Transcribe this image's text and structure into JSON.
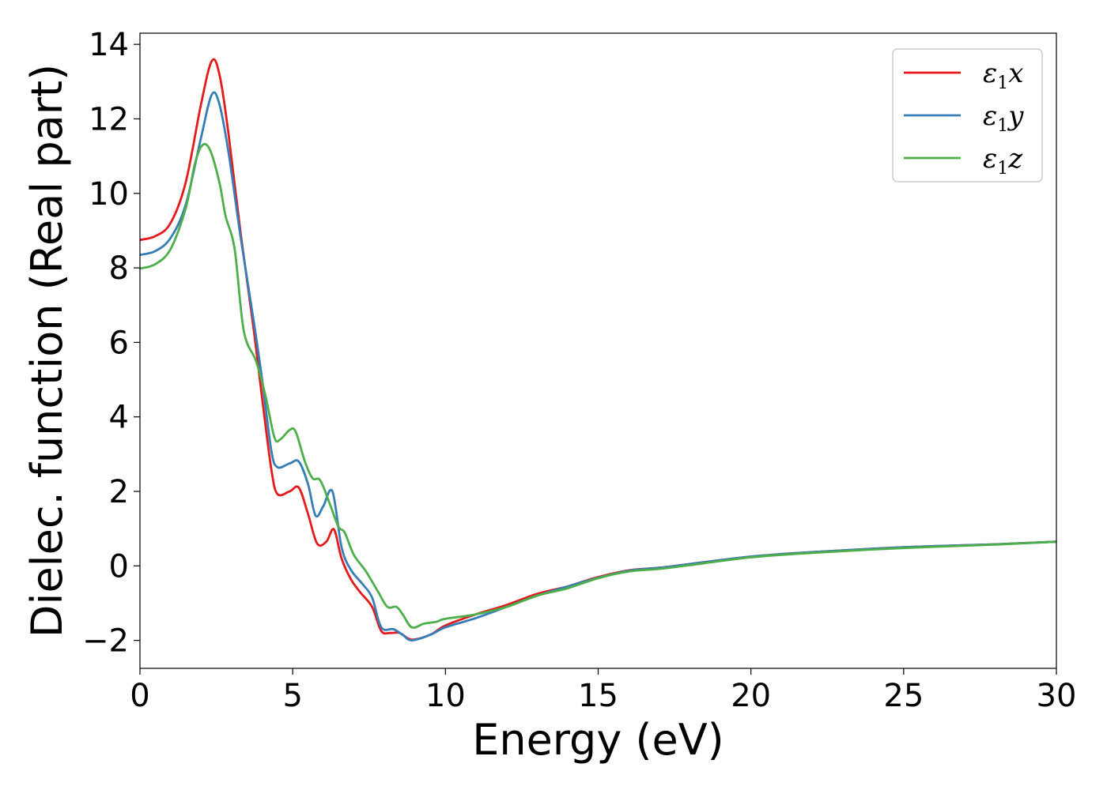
{
  "chart_data": {
    "type": "line",
    "title": "",
    "xlabel": "Energy (eV)",
    "ylabel": "Dielec. function (Real part)",
    "xlim": [
      0,
      30
    ],
    "ylim": [
      -2.75,
      14.3
    ],
    "xticks": [
      0,
      5,
      10,
      15,
      20,
      25,
      30
    ],
    "yticks": [
      -2,
      0,
      2,
      4,
      6,
      8,
      10,
      12,
      14
    ],
    "xtick_labels": [
      "0",
      "5",
      "10",
      "15",
      "20",
      "25",
      "30"
    ],
    "ytick_labels": [
      "−2",
      "0",
      "2",
      "4",
      "6",
      "8",
      "10",
      "12",
      "14"
    ],
    "grid": false,
    "legend_position": "top-right",
    "series": [
      {
        "name": "ε₁x",
        "symbol": "ε",
        "subscript": "1",
        "suffix": "x",
        "color": "#e41a1c",
        "points": [
          [
            0,
            8.75
          ],
          [
            0.5,
            8.85
          ],
          [
            1,
            9.2
          ],
          [
            1.5,
            10.3
          ],
          [
            2,
            12.4
          ],
          [
            2.35,
            13.55
          ],
          [
            2.6,
            13.2
          ],
          [
            2.9,
            11.6
          ],
          [
            3.3,
            8.9
          ],
          [
            3.7,
            6.5
          ],
          [
            4,
            4.5
          ],
          [
            4.3,
            2.6
          ],
          [
            4.5,
            1.93
          ],
          [
            4.9,
            2.0
          ],
          [
            5.2,
            2.1
          ],
          [
            5.5,
            1.4
          ],
          [
            5.8,
            0.6
          ],
          [
            6.1,
            0.65
          ],
          [
            6.35,
            0.98
          ],
          [
            6.6,
            0.2
          ],
          [
            6.9,
            -0.35
          ],
          [
            7.2,
            -0.7
          ],
          [
            7.6,
            -1.1
          ],
          [
            7.9,
            -1.75
          ],
          [
            8.2,
            -1.8
          ],
          [
            8.5,
            -1.8
          ],
          [
            8.9,
            -1.98
          ],
          [
            9.5,
            -1.85
          ],
          [
            10,
            -1.6
          ],
          [
            11,
            -1.3
          ],
          [
            12,
            -1.05
          ],
          [
            13,
            -0.75
          ],
          [
            14,
            -0.55
          ],
          [
            15,
            -0.3
          ],
          [
            16,
            -0.12
          ],
          [
            17,
            -0.05
          ],
          [
            18,
            0.05
          ],
          [
            20,
            0.25
          ],
          [
            22,
            0.37
          ],
          [
            25,
            0.5
          ],
          [
            28,
            0.58
          ],
          [
            30,
            0.65
          ]
        ]
      },
      {
        "name": "ε₁y",
        "symbol": "ε",
        "subscript": "1",
        "suffix": "y",
        "color": "#377eb8",
        "points": [
          [
            0,
            8.35
          ],
          [
            0.5,
            8.45
          ],
          [
            1,
            8.8
          ],
          [
            1.5,
            9.7
          ],
          [
            2,
            11.5
          ],
          [
            2.35,
            12.65
          ],
          [
            2.6,
            12.4
          ],
          [
            2.9,
            11.1
          ],
          [
            3.3,
            8.8
          ],
          [
            3.7,
            6.7
          ],
          [
            4,
            5.0
          ],
          [
            4.3,
            3.1
          ],
          [
            4.5,
            2.65
          ],
          [
            4.9,
            2.75
          ],
          [
            5.2,
            2.8
          ],
          [
            5.5,
            2.2
          ],
          [
            5.75,
            1.35
          ],
          [
            6,
            1.6
          ],
          [
            6.3,
            2.0
          ],
          [
            6.6,
            0.5
          ],
          [
            6.9,
            -0.1
          ],
          [
            7.3,
            -0.5
          ],
          [
            7.6,
            -0.85
          ],
          [
            7.9,
            -1.65
          ],
          [
            8.3,
            -1.7
          ],
          [
            8.6,
            -1.85
          ],
          [
            8.9,
            -2.0
          ],
          [
            9.5,
            -1.85
          ],
          [
            10,
            -1.65
          ],
          [
            11,
            -1.4
          ],
          [
            12,
            -1.1
          ],
          [
            13,
            -0.8
          ],
          [
            14,
            -0.55
          ],
          [
            15,
            -0.32
          ],
          [
            16,
            -0.13
          ],
          [
            17,
            -0.05
          ],
          [
            18,
            0.05
          ],
          [
            20,
            0.25
          ],
          [
            22,
            0.37
          ],
          [
            25,
            0.5
          ],
          [
            28,
            0.58
          ],
          [
            30,
            0.65
          ]
        ]
      },
      {
        "name": "ε₁z",
        "symbol": "ε",
        "subscript": "1",
        "suffix": "z",
        "color": "#4daf4a",
        "points": [
          [
            0,
            7.98
          ],
          [
            0.5,
            8.1
          ],
          [
            1,
            8.5
          ],
          [
            1.5,
            9.6
          ],
          [
            1.8,
            10.8
          ],
          [
            2.05,
            11.3
          ],
          [
            2.3,
            11.15
          ],
          [
            2.6,
            10.3
          ],
          [
            2.8,
            9.4
          ],
          [
            3.1,
            8.5
          ],
          [
            3.4,
            6.3
          ],
          [
            3.8,
            5.5
          ],
          [
            4.1,
            4.6
          ],
          [
            4.4,
            3.45
          ],
          [
            4.6,
            3.4
          ],
          [
            4.9,
            3.65
          ],
          [
            5.1,
            3.6
          ],
          [
            5.4,
            2.8
          ],
          [
            5.65,
            2.35
          ],
          [
            5.9,
            2.3
          ],
          [
            6.2,
            1.7
          ],
          [
            6.5,
            1.05
          ],
          [
            6.7,
            0.9
          ],
          [
            7,
            0.3
          ],
          [
            7.4,
            -0.15
          ],
          [
            7.8,
            -0.7
          ],
          [
            8.1,
            -1.1
          ],
          [
            8.4,
            -1.1
          ],
          [
            8.6,
            -1.3
          ],
          [
            8.9,
            -1.65
          ],
          [
            9.3,
            -1.55
          ],
          [
            9.7,
            -1.5
          ],
          [
            10,
            -1.42
          ],
          [
            11,
            -1.3
          ],
          [
            12,
            -1.1
          ],
          [
            13,
            -0.8
          ],
          [
            14,
            -0.6
          ],
          [
            15,
            -0.33
          ],
          [
            16,
            -0.15
          ],
          [
            17,
            -0.08
          ],
          [
            18,
            0.02
          ],
          [
            20,
            0.23
          ],
          [
            22,
            0.35
          ],
          [
            25,
            0.48
          ],
          [
            28,
            0.57
          ],
          [
            30,
            0.65
          ]
        ]
      }
    ]
  }
}
